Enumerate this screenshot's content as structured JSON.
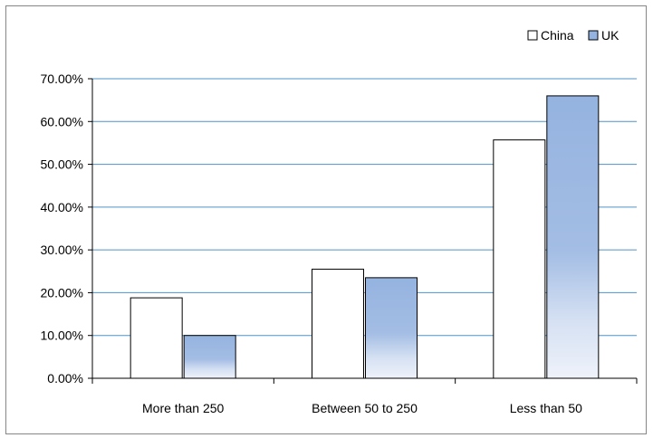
{
  "chart_data": {
    "type": "bar",
    "categories": [
      "More than 250",
      "Between 50 to 250",
      "Less than 50"
    ],
    "series": [
      {
        "name": "China",
        "values": [
          0.188,
          0.255,
          0.557
        ],
        "color": "#ffffff"
      },
      {
        "name": "UK",
        "values": [
          0.1,
          0.235,
          0.66
        ],
        "color": "#95b3e0"
      }
    ],
    "y_ticks": [
      "0.00%",
      "10.00%",
      "20.00%",
      "30.00%",
      "40.00%",
      "50.00%",
      "60.00%",
      "70.00%"
    ],
    "ylim": [
      0,
      0.7
    ],
    "grid": true,
    "gridline_color": "#4f93c9",
    "legend_position": "top-right",
    "title": "",
    "xlabel": "",
    "ylabel": ""
  }
}
